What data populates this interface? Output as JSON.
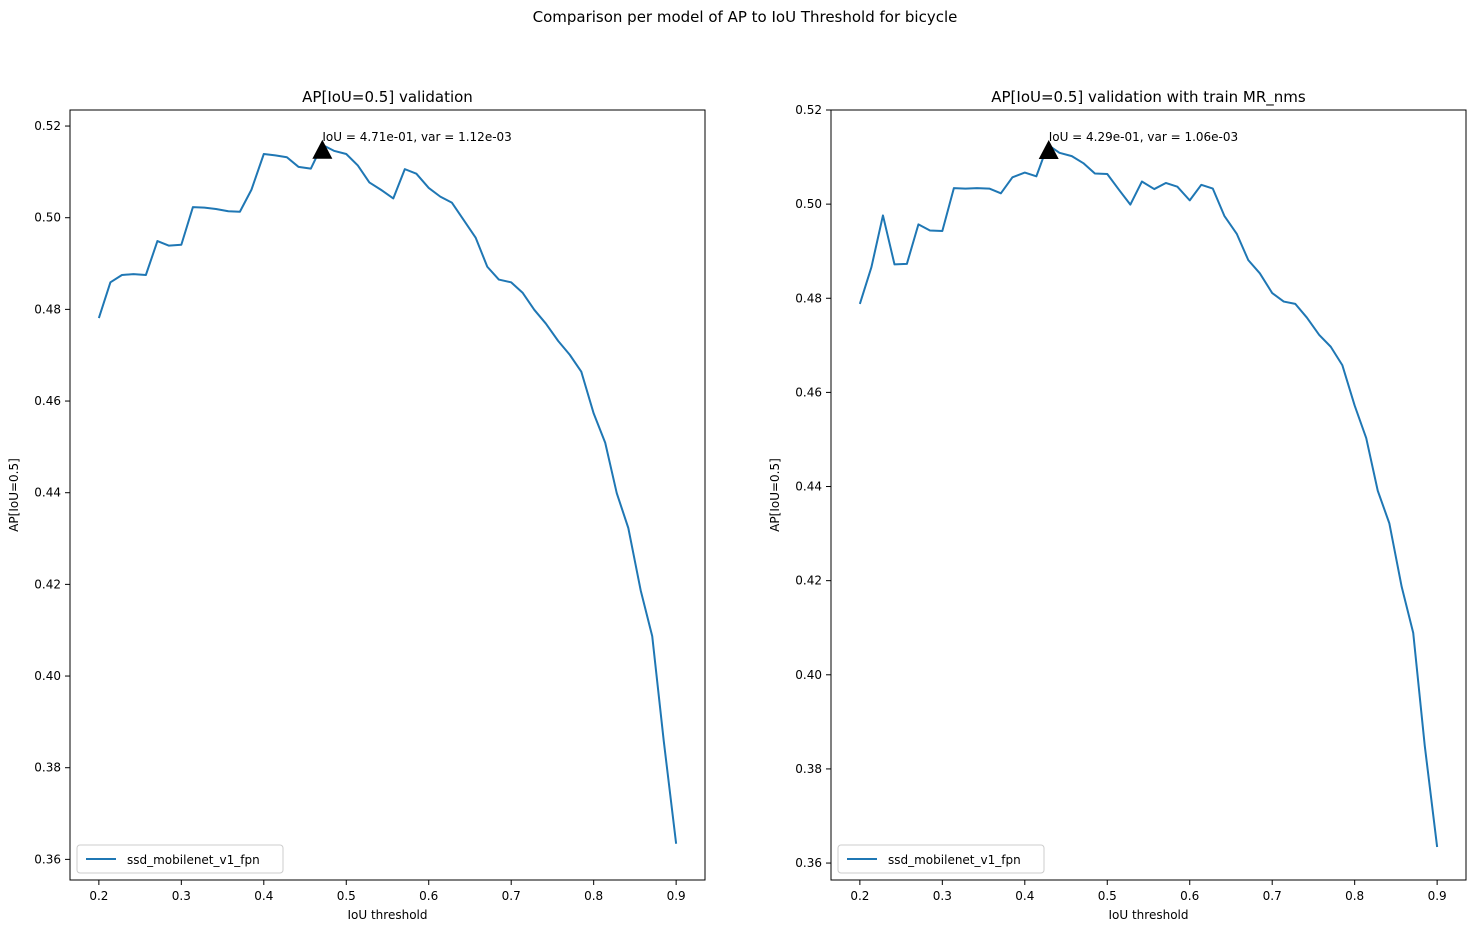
{
  "figure": {
    "suptitle": "Comparison per model of AP to IoU Threshold for bicycle"
  },
  "chart_data": [
    {
      "type": "line",
      "title": "AP[IoU=0.5] validation",
      "xlabel": "IoU threshold",
      "ylabel": "AP[IoU=0.5]",
      "xlim": [
        0.165,
        0.935
      ],
      "ylim": [
        0.3555,
        0.5235
      ],
      "xticks": [
        0.2,
        0.3,
        0.4,
        0.5,
        0.6,
        0.7,
        0.8,
        0.9
      ],
      "xtick_labels": [
        "0.2",
        "0.3",
        "0.4",
        "0.5",
        "0.6",
        "0.7",
        "0.8",
        "0.9"
      ],
      "yticks": [
        0.36,
        0.38,
        0.4,
        0.42,
        0.44,
        0.46,
        0.48,
        0.5,
        0.52
      ],
      "ytick_labels": [
        "0.36",
        "0.38",
        "0.40",
        "0.42",
        "0.44",
        "0.46",
        "0.48",
        "0.50",
        "0.52"
      ],
      "legend": {
        "position": "lower-left",
        "entries": [
          "ssd_mobilenet_v1_fpn"
        ]
      },
      "series": [
        {
          "name": "ssd_mobilenet_v1_fpn",
          "color": "#1f77b4",
          "x": [
            0.2,
            0.214,
            0.228,
            0.242,
            0.257,
            0.271,
            0.285,
            0.3,
            0.314,
            0.328,
            0.342,
            0.357,
            0.371,
            0.385,
            0.4,
            0.414,
            0.428,
            0.442,
            0.457,
            0.471,
            0.485,
            0.5,
            0.514,
            0.528,
            0.542,
            0.557,
            0.571,
            0.585,
            0.6,
            0.614,
            0.628,
            0.642,
            0.657,
            0.671,
            0.685,
            0.7,
            0.714,
            0.728,
            0.742,
            0.757,
            0.771,
            0.785,
            0.8,
            0.814,
            0.828,
            0.842,
            0.857,
            0.871,
            0.885,
            0.9
          ],
          "y": [
            0.4781,
            0.4859,
            0.4875,
            0.4877,
            0.4875,
            0.4949,
            0.4939,
            0.4941,
            0.5023,
            0.5022,
            0.5019,
            0.5014,
            0.5013,
            0.5061,
            0.5139,
            0.5136,
            0.5132,
            0.5111,
            0.5107,
            0.5159,
            0.5146,
            0.5139,
            0.5114,
            0.5077,
            0.5061,
            0.5042,
            0.5106,
            0.5096,
            0.5065,
            0.5046,
            0.5033,
            0.4996,
            0.4956,
            0.4893,
            0.4865,
            0.4859,
            0.4836,
            0.4799,
            0.4769,
            0.4731,
            0.4701,
            0.4664,
            0.4573,
            0.4509,
            0.4399,
            0.4323,
            0.4187,
            0.4087,
            0.3858,
            0.3634
          ]
        }
      ],
      "annotation": {
        "text": "IoU = 4.71e-01, var = 1.12e-03",
        "x": 0.471,
        "y": 0.5146,
        "marker": "triangle"
      }
    },
    {
      "type": "line",
      "title": "AP[IoU=0.5] validation with train MR_nms",
      "xlabel": "IoU threshold",
      "ylabel": "AP[IoU=0.5]",
      "xlim": [
        0.165,
        0.935
      ],
      "ylim": [
        0.3564,
        0.52
      ],
      "xticks": [
        0.2,
        0.3,
        0.4,
        0.5,
        0.6,
        0.7,
        0.8,
        0.9
      ],
      "xtick_labels": [
        "0.2",
        "0.3",
        "0.4",
        "0.5",
        "0.6",
        "0.7",
        "0.8",
        "0.9"
      ],
      "yticks": [
        0.36,
        0.38,
        0.4,
        0.42,
        0.44,
        0.46,
        0.48,
        0.5,
        0.52
      ],
      "ytick_labels": [
        "0.36",
        "0.38",
        "0.40",
        "0.42",
        "0.44",
        "0.46",
        "0.48",
        "0.50",
        "0.52"
      ],
      "legend": {
        "position": "lower-left",
        "entries": [
          "ssd_mobilenet_v1_fpn"
        ]
      },
      "series": [
        {
          "name": "ssd_mobilenet_v1_fpn",
          "color": "#1f77b4",
          "x": [
            0.2,
            0.214,
            0.228,
            0.242,
            0.257,
            0.271,
            0.285,
            0.3,
            0.314,
            0.328,
            0.342,
            0.357,
            0.371,
            0.385,
            0.4,
            0.414,
            0.428,
            0.442,
            0.457,
            0.471,
            0.485,
            0.5,
            0.514,
            0.528,
            0.542,
            0.557,
            0.571,
            0.585,
            0.6,
            0.614,
            0.628,
            0.642,
            0.657,
            0.671,
            0.685,
            0.7,
            0.714,
            0.728,
            0.742,
            0.757,
            0.771,
            0.785,
            0.8,
            0.814,
            0.828,
            0.842,
            0.857,
            0.871,
            0.885,
            0.9
          ],
          "y": [
            0.4788,
            0.4866,
            0.4976,
            0.4872,
            0.4873,
            0.4957,
            0.4944,
            0.4943,
            0.5034,
            0.5033,
            0.5034,
            0.5033,
            0.5023,
            0.5057,
            0.5067,
            0.5059,
            0.5126,
            0.5109,
            0.5102,
            0.5087,
            0.5065,
            0.5064,
            0.5031,
            0.4999,
            0.5048,
            0.5032,
            0.5045,
            0.5037,
            0.5008,
            0.5041,
            0.5033,
            0.4975,
            0.4937,
            0.4881,
            0.4853,
            0.4811,
            0.4793,
            0.4788,
            0.4759,
            0.4722,
            0.4697,
            0.4658,
            0.4572,
            0.4503,
            0.4391,
            0.4322,
            0.4187,
            0.4089,
            0.3849,
            0.3634
          ]
        }
      ],
      "annotation": {
        "text": "IoU = 4.29e-01, var = 1.06e-03",
        "x": 0.429,
        "y": 0.5113,
        "marker": "triangle"
      }
    }
  ]
}
